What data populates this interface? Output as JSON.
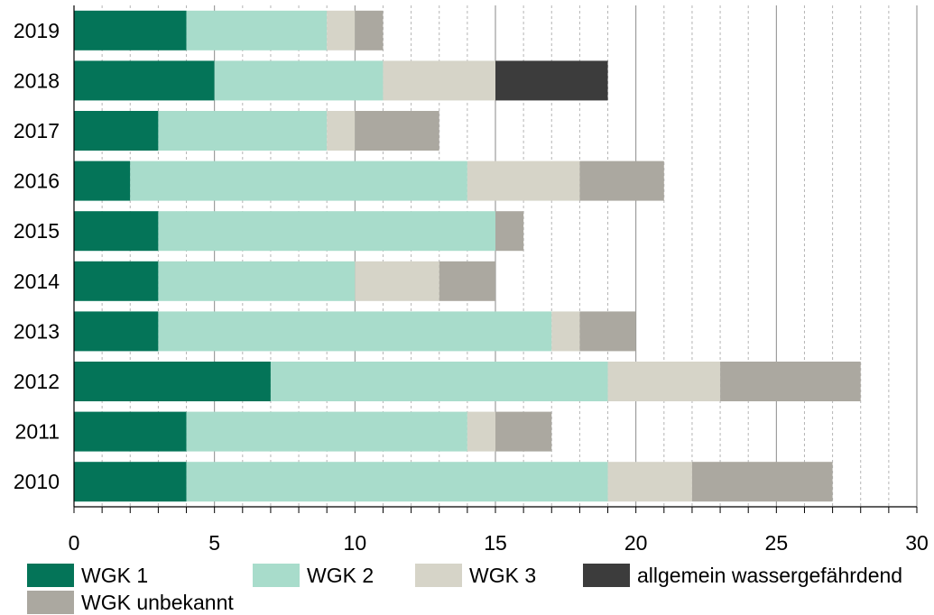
{
  "chart_data": {
    "type": "bar",
    "orientation": "horizontal",
    "stacked": true,
    "categories": [
      "2019",
      "2018",
      "2017",
      "2016",
      "2015",
      "2014",
      "2013",
      "2012",
      "2011",
      "2010"
    ],
    "series": [
      {
        "name": "WGK 1",
        "color": "#047458",
        "values": [
          4,
          5,
          3,
          2,
          3,
          3,
          3,
          7,
          4,
          4
        ]
      },
      {
        "name": "WGK 2",
        "color": "#a8dccb",
        "values": [
          5,
          6,
          6,
          12,
          12,
          7,
          14,
          12,
          10,
          15
        ]
      },
      {
        "name": "WGK 3",
        "color": "#d6d4c8",
        "values": [
          1,
          4,
          1,
          4,
          0,
          3,
          1,
          4,
          1,
          3
        ]
      },
      {
        "name": "allgemein wassergefährdend",
        "color": "#3c3c3c",
        "values": [
          0,
          4,
          0,
          0,
          0,
          0,
          0,
          0,
          0,
          0
        ]
      },
      {
        "name": "WGK unbekannt",
        "color": "#aba8a0",
        "values": [
          1,
          0,
          3,
          3,
          1,
          2,
          2,
          5,
          2,
          5
        ]
      }
    ],
    "xlim": [
      0,
      30
    ],
    "xticks": [
      "0",
      "5",
      "10",
      "15",
      "20",
      "25",
      "30"
    ],
    "minor_tick_step": 1,
    "grid": true,
    "legend_position": "bottom"
  }
}
